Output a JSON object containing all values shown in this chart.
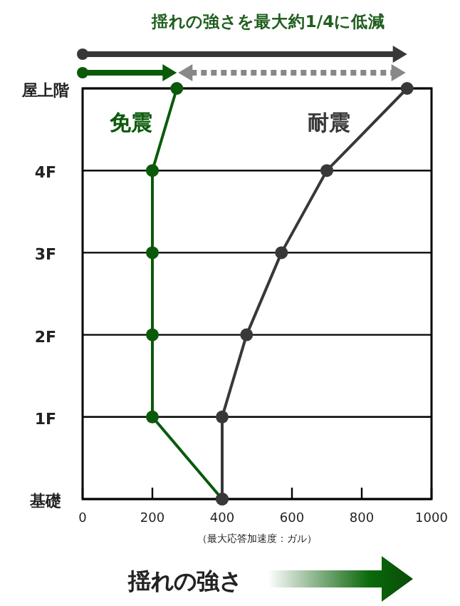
{
  "chart_data": {
    "type": "line",
    "title": "揺れの強さを最大約1/4に低減",
    "xlabel": "（最大応答加速度：ガル）",
    "orientation": "horizontal",
    "categories": [
      "屋上階",
      "4F",
      "3F",
      "2F",
      "1F",
      "基礎"
    ],
    "xlim": [
      0,
      1000
    ],
    "xticks": [
      0,
      200,
      400,
      600,
      800,
      1000
    ],
    "grid": "y",
    "marker": "circle",
    "line_style": "solid",
    "series": [
      {
        "name": "免震",
        "color": "#0a5a0a",
        "values": [
          270,
          200,
          200,
          200,
          200,
          400
        ]
      },
      {
        "name": "耐震",
        "color": "#383838",
        "values": [
          930,
          700,
          570,
          470,
          400,
          400
        ]
      }
    ],
    "annotations": [
      "揺れの強さ"
    ]
  }
}
